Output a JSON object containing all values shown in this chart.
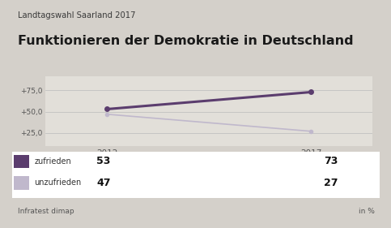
{
  "title_top": "Landtagswahl Saarland 2017",
  "title_main": "Funktionieren der Demokratie in Deutschland",
  "years": [
    2012,
    2017
  ],
  "series": [
    {
      "label": "zufrieden",
      "values": [
        53,
        73
      ],
      "color": "#5b3d6e",
      "linewidth": 2.2,
      "marker_size": 5
    },
    {
      "label": "unzufrieden",
      "values": [
        47,
        27
      ],
      "color": "#c0b8cc",
      "linewidth": 1.2,
      "marker_size": 4
    }
  ],
  "yticks": [
    25,
    50,
    75
  ],
  "ytick_labels": [
    "+25,0",
    "+50,0",
    "+75,0"
  ],
  "ylim": [
    10,
    92
  ],
  "xlim": [
    2010.5,
    2018.5
  ],
  "background_color": "#d4d0ca",
  "plot_bg_color": "#e2dfd9",
  "legend_bg_color": "#f0eeea",
  "source": "Infratest dimap",
  "unit": "in %",
  "legend_values_left": [
    "53",
    "47"
  ],
  "legend_values_right": [
    "73",
    "27"
  ]
}
